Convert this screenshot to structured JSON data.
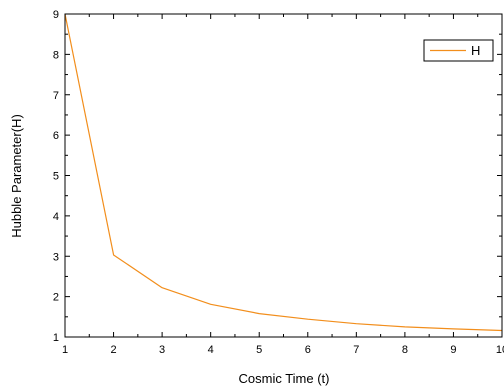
{
  "chart_data": {
    "type": "line",
    "title": "",
    "xlabel": "Cosmic Time (t)",
    "ylabel": "Hubble Parameter(H)",
    "xlim": [
      1,
      10
    ],
    "ylim": [
      1,
      9
    ],
    "x_ticks": [
      1,
      2,
      3,
      4,
      5,
      6,
      7,
      8,
      9,
      10
    ],
    "y_ticks": [
      1,
      2,
      3,
      4,
      5,
      6,
      7,
      8,
      9
    ],
    "grid": false,
    "legend_position": "top-right",
    "series": [
      {
        "name": "H",
        "color": "#f28e1c",
        "x": [
          1,
          2,
          3,
          4,
          5,
          6,
          7,
          8,
          9,
          10
        ],
        "y": [
          9.0,
          3.03,
          2.22,
          1.81,
          1.58,
          1.44,
          1.33,
          1.25,
          1.2,
          1.16
        ]
      }
    ]
  }
}
